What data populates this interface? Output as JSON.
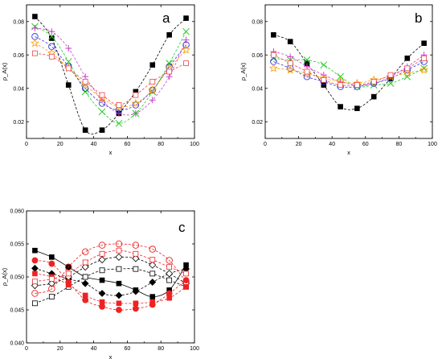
{
  "chart_data": [
    {
      "panel_label": "a",
      "type": "scatter",
      "xlabel": "x",
      "ylabel": "ρ_A(x)",
      "xlim": [
        0,
        100
      ],
      "ylim": [
        0.01,
        0.09
      ],
      "xticks": [
        0,
        20,
        40,
        60,
        80,
        100
      ],
      "yticks": [
        0.02,
        0.04,
        0.06,
        0.08
      ],
      "grid": false,
      "series": [
        {
          "marker": "square-filled",
          "color": "#000000",
          "x": [
            5,
            15,
            25,
            35,
            45,
            55,
            65,
            75,
            85,
            95
          ],
          "y": [
            0.083,
            0.07,
            0.042,
            0.015,
            0.015,
            0.025,
            0.038,
            0.054,
            0.072,
            0.082
          ]
        },
        {
          "marker": "cross",
          "color": "#22cc22",
          "x": [
            5,
            15,
            25,
            35,
            45,
            55,
            65,
            75,
            85,
            95
          ],
          "y": [
            0.077,
            0.071,
            0.056,
            0.038,
            0.026,
            0.019,
            0.025,
            0.038,
            0.055,
            0.074
          ]
        },
        {
          "marker": "plus",
          "color": "#cc44cc",
          "x": [
            5,
            15,
            25,
            35,
            45,
            55,
            65,
            75,
            85,
            95
          ],
          "y": [
            0.076,
            0.074,
            0.064,
            0.047,
            0.033,
            0.025,
            0.025,
            0.033,
            0.047,
            0.069
          ]
        },
        {
          "marker": "circle-open",
          "color": "#3333dd",
          "x": [
            5,
            15,
            25,
            35,
            45,
            55,
            65,
            75,
            85,
            95
          ],
          "y": [
            0.071,
            0.065,
            0.053,
            0.04,
            0.031,
            0.027,
            0.03,
            0.039,
            0.053,
            0.066
          ]
        },
        {
          "marker": "star-open",
          "color": "#ff9900",
          "x": [
            5,
            15,
            25,
            35,
            45,
            55,
            65,
            75,
            85,
            95
          ],
          "y": [
            0.067,
            0.061,
            0.052,
            0.042,
            0.034,
            0.029,
            0.031,
            0.039,
            0.052,
            0.063
          ]
        },
        {
          "marker": "square-open",
          "color": "#ee4444",
          "x": [
            5,
            15,
            25,
            35,
            45,
            55,
            65,
            75,
            85,
            95
          ],
          "y": [
            0.061,
            0.059,
            0.052,
            0.044,
            0.036,
            0.03,
            0.036,
            0.044,
            0.05,
            0.055
          ]
        }
      ]
    },
    {
      "panel_label": "b",
      "type": "scatter",
      "xlabel": "x",
      "ylabel": "ρ_A(x)",
      "xlim": [
        0,
        100
      ],
      "ylim": [
        0.01,
        0.09
      ],
      "xticks": [
        0,
        20,
        40,
        60,
        80,
        100
      ],
      "yticks": [
        0.02,
        0.04,
        0.06,
        0.08
      ],
      "grid": false,
      "series": [
        {
          "marker": "square-filled",
          "color": "#000000",
          "x": [
            5,
            15,
            25,
            35,
            45,
            55,
            65,
            75,
            85,
            95
          ],
          "y": [
            0.072,
            0.068,
            0.055,
            0.042,
            0.029,
            0.028,
            0.035,
            0.046,
            0.058,
            0.067
          ]
        },
        {
          "marker": "cross",
          "color": "#22cc22",
          "x": [
            5,
            15,
            25,
            35,
            45,
            55,
            65,
            75,
            85,
            95
          ],
          "y": [
            0.058,
            0.057,
            0.057,
            0.054,
            0.047,
            0.041,
            0.042,
            0.043,
            0.047,
            0.052
          ]
        },
        {
          "marker": "plus",
          "color": "#cc44cc",
          "x": [
            5,
            15,
            25,
            35,
            45,
            55,
            65,
            75,
            85,
            95
          ],
          "y": [
            0.062,
            0.059,
            0.053,
            0.048,
            0.044,
            0.042,
            0.043,
            0.047,
            0.053,
            0.06
          ]
        },
        {
          "marker": "circle-open",
          "color": "#3333dd",
          "x": [
            5,
            15,
            25,
            35,
            45,
            55,
            65,
            75,
            85,
            95
          ],
          "y": [
            0.056,
            0.052,
            0.047,
            0.044,
            0.041,
            0.041,
            0.043,
            0.046,
            0.051,
            0.056
          ]
        },
        {
          "marker": "star-open",
          "color": "#ff9900",
          "x": [
            5,
            15,
            25,
            35,
            45,
            55,
            65,
            75,
            85,
            95
          ],
          "y": [
            0.052,
            0.051,
            0.049,
            0.046,
            0.044,
            0.043,
            0.045,
            0.047,
            0.049,
            0.051
          ]
        },
        {
          "marker": "square-open",
          "color": "#ee4444",
          "x": [
            5,
            15,
            25,
            35,
            45,
            55,
            65,
            75,
            85,
            95
          ],
          "y": [
            0.06,
            0.055,
            0.05,
            0.045,
            0.042,
            0.042,
            0.044,
            0.048,
            0.052,
            0.058
          ]
        }
      ]
    },
    {
      "panel_label": "c",
      "type": "scatter",
      "xlabel": "x",
      "ylabel": "ρ_A(x)",
      "xlim": [
        0,
        100
      ],
      "ylim": [
        0.04,
        0.06
      ],
      "xticks": [
        0,
        20,
        40,
        60,
        80,
        100
      ],
      "yticks": [
        0.04,
        0.045,
        0.05,
        0.055,
        0.06
      ],
      "grid": false,
      "series": [
        {
          "marker": "square-filled",
          "color": "#000000",
          "line": "solid",
          "x": [
            5,
            15,
            25,
            35,
            45,
            55,
            65,
            75,
            85,
            95
          ],
          "y": [
            0.054,
            0.053,
            0.0515,
            0.05,
            0.0495,
            0.049,
            0.048,
            0.047,
            0.048,
            0.0518
          ]
        },
        {
          "marker": "square-open",
          "color": "#000000",
          "x": [
            5,
            15,
            25,
            35,
            45,
            55,
            65,
            75,
            85,
            95
          ],
          "y": [
            0.046,
            0.047,
            0.0485,
            0.05,
            0.051,
            0.0512,
            0.0512,
            0.0505,
            0.0495,
            0.0485
          ]
        },
        {
          "marker": "diamond-filled",
          "color": "#000000",
          "x": [
            5,
            15,
            25,
            35,
            45,
            55,
            65,
            75,
            85,
            95
          ],
          "y": [
            0.0513,
            0.0505,
            0.0497,
            0.049,
            0.0475,
            0.0472,
            0.0478,
            0.0492,
            0.0505,
            0.0512
          ]
        },
        {
          "marker": "diamond-open",
          "color": "#000000",
          "x": [
            5,
            15,
            25,
            35,
            45,
            55,
            65,
            75,
            85,
            95
          ],
          "y": [
            0.0487,
            0.049,
            0.05,
            0.0515,
            0.0526,
            0.053,
            0.0528,
            0.0518,
            0.0505,
            0.049
          ]
        },
        {
          "marker": "circle-filled",
          "color": "#ee2222",
          "x": [
            5,
            15,
            25,
            35,
            45,
            55,
            65,
            75,
            85,
            95
          ],
          "y": [
            0.0525,
            0.052,
            0.0492,
            0.0465,
            0.0455,
            0.045,
            0.0452,
            0.0458,
            0.0475,
            0.0495
          ]
        },
        {
          "marker": "circle-open",
          "color": "#ee2222",
          "x": [
            5,
            15,
            25,
            35,
            45,
            55,
            65,
            75,
            85,
            95
          ],
          "y": [
            0.0475,
            0.0482,
            0.0515,
            0.0538,
            0.0548,
            0.055,
            0.0548,
            0.0542,
            0.0525,
            0.0492
          ]
        },
        {
          "marker": "square-filled",
          "color": "#ee2222",
          "x": [
            5,
            15,
            25,
            35,
            45,
            55,
            65,
            75,
            85,
            95
          ],
          "y": [
            0.0505,
            0.05,
            0.0488,
            0.0472,
            0.0462,
            0.046,
            0.046,
            0.0462,
            0.0468,
            0.0485
          ]
        },
        {
          "marker": "square-open",
          "color": "#ee2222",
          "x": [
            5,
            15,
            25,
            35,
            45,
            55,
            65,
            75,
            85,
            95
          ],
          "y": [
            0.0493,
            0.0497,
            0.0505,
            0.0522,
            0.0535,
            0.054,
            0.0535,
            0.0526,
            0.0515,
            0.0505
          ]
        }
      ]
    }
  ]
}
